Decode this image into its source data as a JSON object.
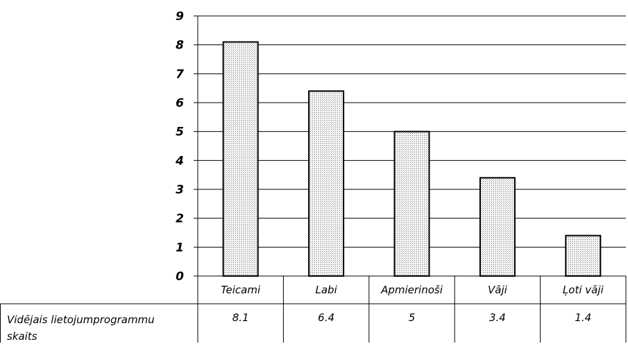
{
  "chart_data": {
    "type": "bar",
    "categories": [
      "Teicami",
      "Labi",
      "Apmierinoši",
      "Vāji",
      "Ļoti vāji"
    ],
    "series": [
      {
        "name": "Vidējais lietojumprogrammu skaits",
        "values": [
          8.1,
          6.4,
          5,
          3.4,
          1.4
        ],
        "value_labels": [
          "8.1",
          "6.4",
          "5",
          "3.4",
          "1.4"
        ]
      }
    ],
    "ylim": [
      0,
      9
    ],
    "yticks": [
      "0",
      "1",
      "2",
      "3",
      "4",
      "5",
      "6",
      "7",
      "8",
      "9"
    ],
    "grid": true,
    "legend": "data-table",
    "table_row_label_lines": [
      "Vidējais lietojumprogrammu",
      "skaits"
    ],
    "colors": {
      "bar_fill": "#cfcfcf",
      "bar_stroke": "#000000",
      "grid": "#000000"
    }
  }
}
